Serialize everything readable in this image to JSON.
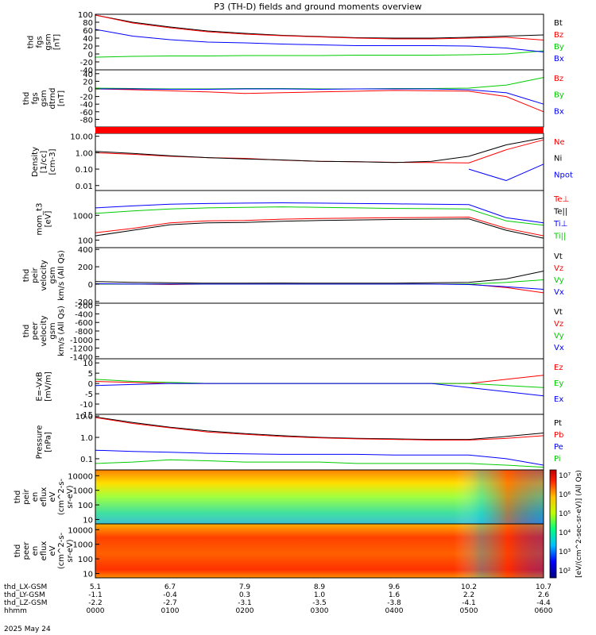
{
  "title": "P3 (TH-D) fields and ground moments overview",
  "chart_data": [
    {
      "type": "line",
      "id": "fgs_gsm",
      "ylabel": [
        "thd",
        "fgs",
        "gsm",
        "[nT]"
      ],
      "yticks": [
        "100",
        "80",
        "60",
        "40",
        "20",
        "0",
        "-20",
        "-40"
      ],
      "ylim": [
        -40,
        100
      ],
      "series": [
        {
          "name": "Bt",
          "color": "#000000",
          "x": [
            0,
            30,
            60,
            90,
            120,
            150,
            180,
            210,
            240,
            270,
            300,
            330,
            360
          ],
          "values": [
            98,
            80,
            68,
            58,
            52,
            47,
            44,
            41,
            40,
            40,
            42,
            45,
            48
          ]
        },
        {
          "name": "Bz",
          "color": "#ff0000",
          "x": [
            0,
            30,
            60,
            90,
            120,
            150,
            180,
            210,
            240,
            270,
            300,
            330,
            360
          ],
          "values": [
            98,
            78,
            66,
            56,
            50,
            46,
            43,
            40,
            38,
            38,
            40,
            42,
            35
          ]
        },
        {
          "name": "By",
          "color": "#00cc00",
          "x": [
            0,
            30,
            60,
            90,
            120,
            150,
            180,
            210,
            240,
            270,
            300,
            330,
            360
          ],
          "values": [
            -8,
            -6,
            -5,
            -5,
            -4,
            -4,
            -4,
            -3,
            -3,
            -3,
            -2,
            0,
            8
          ]
        },
        {
          "name": "Bx",
          "color": "#0000ff",
          "x": [
            0,
            30,
            60,
            90,
            120,
            150,
            180,
            210,
            240,
            270,
            300,
            330,
            360
          ],
          "values": [
            62,
            45,
            36,
            30,
            28,
            25,
            23,
            21,
            21,
            21,
            20,
            15,
            5
          ]
        }
      ]
    },
    {
      "type": "line",
      "id": "fgs_dtrend",
      "ylabel": [
        "thd",
        "fgs",
        "gsm",
        "dtrnd",
        "[nT]"
      ],
      "yticks": [
        "40",
        "20",
        "0",
        "-20",
        "-40",
        "-60",
        "-80"
      ],
      "ylim": [
        -100,
        50
      ],
      "series": [
        {
          "name": "Bz",
          "color": "#ff0000",
          "x": [
            0,
            30,
            60,
            90,
            120,
            150,
            180,
            210,
            240,
            270,
            300,
            330,
            360
          ],
          "values": [
            0,
            -2,
            -5,
            -8,
            -12,
            -10,
            -8,
            -6,
            -4,
            -5,
            -6,
            -20,
            -60
          ]
        },
        {
          "name": "By",
          "color": "#00cc00",
          "x": [
            0,
            30,
            60,
            90,
            120,
            150,
            180,
            210,
            240,
            270,
            300,
            330,
            360
          ],
          "values": [
            2,
            1,
            0,
            0,
            1,
            1,
            0,
            0,
            1,
            1,
            2,
            10,
            30
          ]
        },
        {
          "name": "Bx",
          "color": "#0000ff",
          "x": [
            0,
            30,
            60,
            90,
            120,
            150,
            180,
            210,
            240,
            270,
            300,
            330,
            360
          ],
          "values": [
            0,
            0,
            -1,
            -1,
            0,
            0,
            -1,
            0,
            0,
            0,
            -2,
            -10,
            -40
          ]
        }
      ]
    },
    {
      "type": "line",
      "id": "density",
      "yscale": "log",
      "ylabel": [
        "Density",
        "[1/cc]",
        "[cm-3]"
      ],
      "yticks": [
        "10.00",
        "1.00",
        "0.10",
        "0.01"
      ],
      "ylim": [
        0.005,
        15
      ],
      "series": [
        {
          "name": "Ne",
          "color": "#ff0000",
          "x": [
            0,
            30,
            60,
            90,
            120,
            150,
            180,
            210,
            240,
            270,
            300,
            330,
            360
          ],
          "values": [
            1.0,
            0.8,
            0.6,
            0.5,
            0.45,
            0.35,
            0.3,
            0.28,
            0.26,
            0.25,
            0.24,
            1.5,
            6
          ]
        },
        {
          "name": "Ni",
          "color": "#000000",
          "x": [
            0,
            30,
            60,
            90,
            120,
            150,
            180,
            210,
            240,
            270,
            300,
            330,
            360
          ],
          "values": [
            1.2,
            0.9,
            0.65,
            0.5,
            0.42,
            0.36,
            0.3,
            0.28,
            0.25,
            0.3,
            0.6,
            3,
            8
          ]
        },
        {
          "name": "Npot",
          "color": "#0000ff",
          "x": [
            0,
            30,
            60,
            90,
            120,
            150,
            180,
            210,
            240,
            270,
            300,
            330,
            360
          ],
          "values": [
            null,
            null,
            null,
            null,
            null,
            null,
            null,
            null,
            null,
            null,
            0.1,
            0.02,
            0.2
          ]
        }
      ]
    },
    {
      "type": "line",
      "id": "temperature",
      "yscale": "log",
      "ylabel": [
        "mom_t3",
        "[eV]"
      ],
      "yticks": [
        "1000",
        "100"
      ],
      "ylim": [
        50,
        10000
      ],
      "series": [
        {
          "name": "Te⊥",
          "color": "#ff0000",
          "x": [
            0,
            30,
            60,
            90,
            120,
            150,
            180,
            210,
            240,
            270,
            300,
            330,
            360
          ],
          "values": [
            200,
            300,
            500,
            600,
            620,
            700,
            750,
            780,
            800,
            820,
            850,
            300,
            150
          ]
        },
        {
          "name": "Te||",
          "color": "#000000",
          "x": [
            0,
            30,
            60,
            90,
            120,
            150,
            180,
            210,
            240,
            270,
            300,
            330,
            360
          ],
          "values": [
            150,
            250,
            420,
            500,
            520,
            580,
            620,
            650,
            680,
            700,
            720,
            250,
            120
          ]
        },
        {
          "name": "Ti⊥",
          "color": "#0000ff",
          "x": [
            0,
            30,
            60,
            90,
            120,
            150,
            180,
            210,
            240,
            270,
            300,
            330,
            360
          ],
          "values": [
            2000,
            2400,
            2800,
            3000,
            3100,
            3200,
            3100,
            3000,
            2900,
            2800,
            2700,
            800,
            500
          ]
        },
        {
          "name": "Ti||",
          "color": "#00cc00",
          "x": [
            0,
            30,
            60,
            90,
            120,
            150,
            180,
            210,
            240,
            270,
            300,
            330,
            360
          ],
          "values": [
            1200,
            1500,
            1800,
            2000,
            2100,
            2200,
            2100,
            2000,
            1900,
            1850,
            1800,
            600,
            400
          ]
        }
      ]
    },
    {
      "type": "line",
      "id": "ion_velocity",
      "ylabel": [
        "thd",
        "peir",
        "velocity",
        "gsm",
        "km/s (All Qs)"
      ],
      "yticks": [
        "400",
        "200",
        "0",
        "-200"
      ],
      "ylim": [
        -220,
        420
      ],
      "series": [
        {
          "name": "Vt",
          "color": "#000000",
          "x": [
            0,
            30,
            60,
            90,
            120,
            150,
            180,
            210,
            240,
            270,
            300,
            330,
            360
          ],
          "values": [
            30,
            20,
            15,
            10,
            10,
            12,
            10,
            10,
            10,
            15,
            20,
            60,
            150
          ]
        },
        {
          "name": "Vz",
          "color": "#ff0000",
          "x": [
            0,
            30,
            60,
            90,
            120,
            150,
            180,
            210,
            240,
            270,
            300,
            330,
            360
          ],
          "values": [
            0,
            0,
            -5,
            0,
            0,
            0,
            0,
            0,
            0,
            0,
            0,
            -40,
            -100
          ]
        },
        {
          "name": "Vy",
          "color": "#00cc00",
          "x": [
            0,
            30,
            60,
            90,
            120,
            150,
            180,
            210,
            240,
            270,
            300,
            330,
            360
          ],
          "values": [
            0,
            0,
            0,
            0,
            0,
            0,
            0,
            0,
            0,
            0,
            0,
            20,
            50
          ]
        },
        {
          "name": "Vx",
          "color": "#0000ff",
          "x": [
            0,
            30,
            60,
            90,
            120,
            150,
            180,
            210,
            240,
            270,
            300,
            330,
            360
          ],
          "values": [
            5,
            0,
            0,
            0,
            0,
            0,
            0,
            0,
            0,
            0,
            -5,
            -30,
            -60
          ]
        }
      ]
    },
    {
      "type": "line",
      "id": "electron_velocity",
      "ylabel": [
        "thd",
        "peer",
        "velocity",
        "gsm",
        "km/s (All Qs)"
      ],
      "yticks": [
        "-200",
        "-400",
        "-600",
        "-800",
        "-1000",
        "-1200",
        "-1400"
      ],
      "ylim": [
        -1450,
        -150
      ],
      "series": [
        {
          "name": "Vt",
          "color": "#000000",
          "x": [],
          "values": []
        },
        {
          "name": "Vz",
          "color": "#ff0000",
          "x": [],
          "values": []
        },
        {
          "name": "Vy",
          "color": "#00cc00",
          "x": [],
          "values": []
        },
        {
          "name": "Vx",
          "color": "#0000ff",
          "x": [],
          "values": []
        }
      ]
    },
    {
      "type": "line",
      "id": "efield",
      "ylabel": [
        "E=-VxB",
        "[mV/m]"
      ],
      "yticks": [
        "10",
        "5",
        "0",
        "-5",
        "-10",
        "-15"
      ],
      "ylim": [
        -15,
        12
      ],
      "series": [
        {
          "name": "Ez",
          "color": "#ff0000",
          "x": [
            0,
            30,
            60,
            90,
            120,
            150,
            180,
            210,
            240,
            270,
            300,
            330,
            360
          ],
          "values": [
            1,
            0.5,
            0,
            0,
            0,
            0,
            0,
            0,
            0,
            0,
            0,
            2,
            4
          ]
        },
        {
          "name": "Ey",
          "color": "#00cc00",
          "x": [
            0,
            30,
            60,
            90,
            120,
            150,
            180,
            210,
            240,
            270,
            300,
            330,
            360
          ],
          "values": [
            2,
            1,
            0.5,
            0,
            0,
            0,
            0,
            0,
            0,
            0,
            0,
            -1,
            -2
          ]
        },
        {
          "name": "Ex",
          "color": "#0000ff",
          "x": [
            0,
            30,
            60,
            90,
            120,
            150,
            180,
            210,
            240,
            270,
            300,
            330,
            360
          ],
          "values": [
            -1,
            -0.5,
            0,
            0,
            0,
            0,
            0,
            0,
            0,
            0,
            -2,
            -4,
            -6
          ]
        }
      ]
    },
    {
      "type": "line",
      "id": "pressure",
      "yscale": "log",
      "ylabel": [
        "Pressure",
        "[nPa]"
      ],
      "yticks": [
        "10.0",
        "1.0",
        "0.1"
      ],
      "ylim": [
        0.03,
        12
      ],
      "series": [
        {
          "name": "Pt",
          "color": "#000000",
          "x": [
            0,
            30,
            60,
            90,
            120,
            150,
            180,
            210,
            240,
            270,
            300,
            330,
            360
          ],
          "values": [
            9,
            5,
            3,
            2,
            1.5,
            1.2,
            1.0,
            0.9,
            0.85,
            0.8,
            0.8,
            1.1,
            1.6
          ]
        },
        {
          "name": "Pb",
          "color": "#ff0000",
          "x": [
            0,
            30,
            60,
            90,
            120,
            150,
            180,
            210,
            240,
            270,
            300,
            330,
            360
          ],
          "values": [
            8.5,
            4.5,
            2.8,
            1.8,
            1.4,
            1.1,
            0.95,
            0.85,
            0.8,
            0.75,
            0.75,
            0.9,
            1.2
          ]
        },
        {
          "name": "Pe",
          "color": "#0000ff",
          "x": [
            0,
            30,
            60,
            90,
            120,
            150,
            180,
            210,
            240,
            270,
            300,
            330,
            360
          ],
          "values": [
            0.25,
            0.22,
            0.2,
            0.18,
            0.17,
            0.16,
            0.16,
            0.16,
            0.15,
            0.15,
            0.15,
            0.1,
            0.05
          ]
        },
        {
          "name": "Pi",
          "color": "#00cc00",
          "x": [
            0,
            30,
            60,
            90,
            120,
            150,
            180,
            210,
            240,
            270,
            300,
            330,
            360
          ],
          "values": [
            0.06,
            0.07,
            0.09,
            0.08,
            0.07,
            0.07,
            0.07,
            0.06,
            0.06,
            0.06,
            0.06,
            0.05,
            0.04
          ]
        }
      ]
    },
    {
      "type": "heatmap",
      "id": "ion_spectrogram",
      "ylabel": [
        "thd",
        "peir",
        "en",
        "eflux",
        "eV",
        "(cm^2-s-",
        "sr-eV)"
      ],
      "yticks": [
        "10000",
        "1000",
        "100",
        "10"
      ],
      "ylim": [
        5,
        25000
      ]
    },
    {
      "type": "heatmap",
      "id": "electron_spectrogram",
      "ylabel": [
        "thd",
        "peer",
        "en",
        "eflux",
        "eV",
        "(cm^2-s-",
        "sr-eV)"
      ],
      "yticks": [
        "10000",
        "1000",
        "100",
        "10"
      ],
      "ylim": [
        5,
        25000
      ]
    }
  ],
  "colorbar": {
    "ticks": [
      "10⁷",
      "10⁶",
      "10⁵",
      "10⁴",
      "10³",
      "10²"
    ],
    "label": "[eV/(cm^2-sec-sr-eV)] (All Qs)"
  },
  "xaxis": {
    "rows": [
      {
        "label": "thd_LX-GSM",
        "values": [
          "5.1",
          "6.7",
          "7.9",
          "8.9",
          "9.6",
          "10.2",
          "10.7"
        ]
      },
      {
        "label": "thd_LY-GSM",
        "values": [
          "-1.1",
          "-0.4",
          "0.3",
          "1.0",
          "1.6",
          "2.2",
          "2.6"
        ]
      },
      {
        "label": "thd_LZ-GSM",
        "values": [
          "-2.2",
          "-2.7",
          "-3.1",
          "-3.5",
          "-3.8",
          "-4.1",
          "-4.4"
        ]
      },
      {
        "label": "hhmm",
        "values": [
          "0000",
          "0100",
          "0200",
          "0300",
          "0400",
          "0500",
          "0600"
        ]
      }
    ],
    "date": "2025 May 24"
  }
}
